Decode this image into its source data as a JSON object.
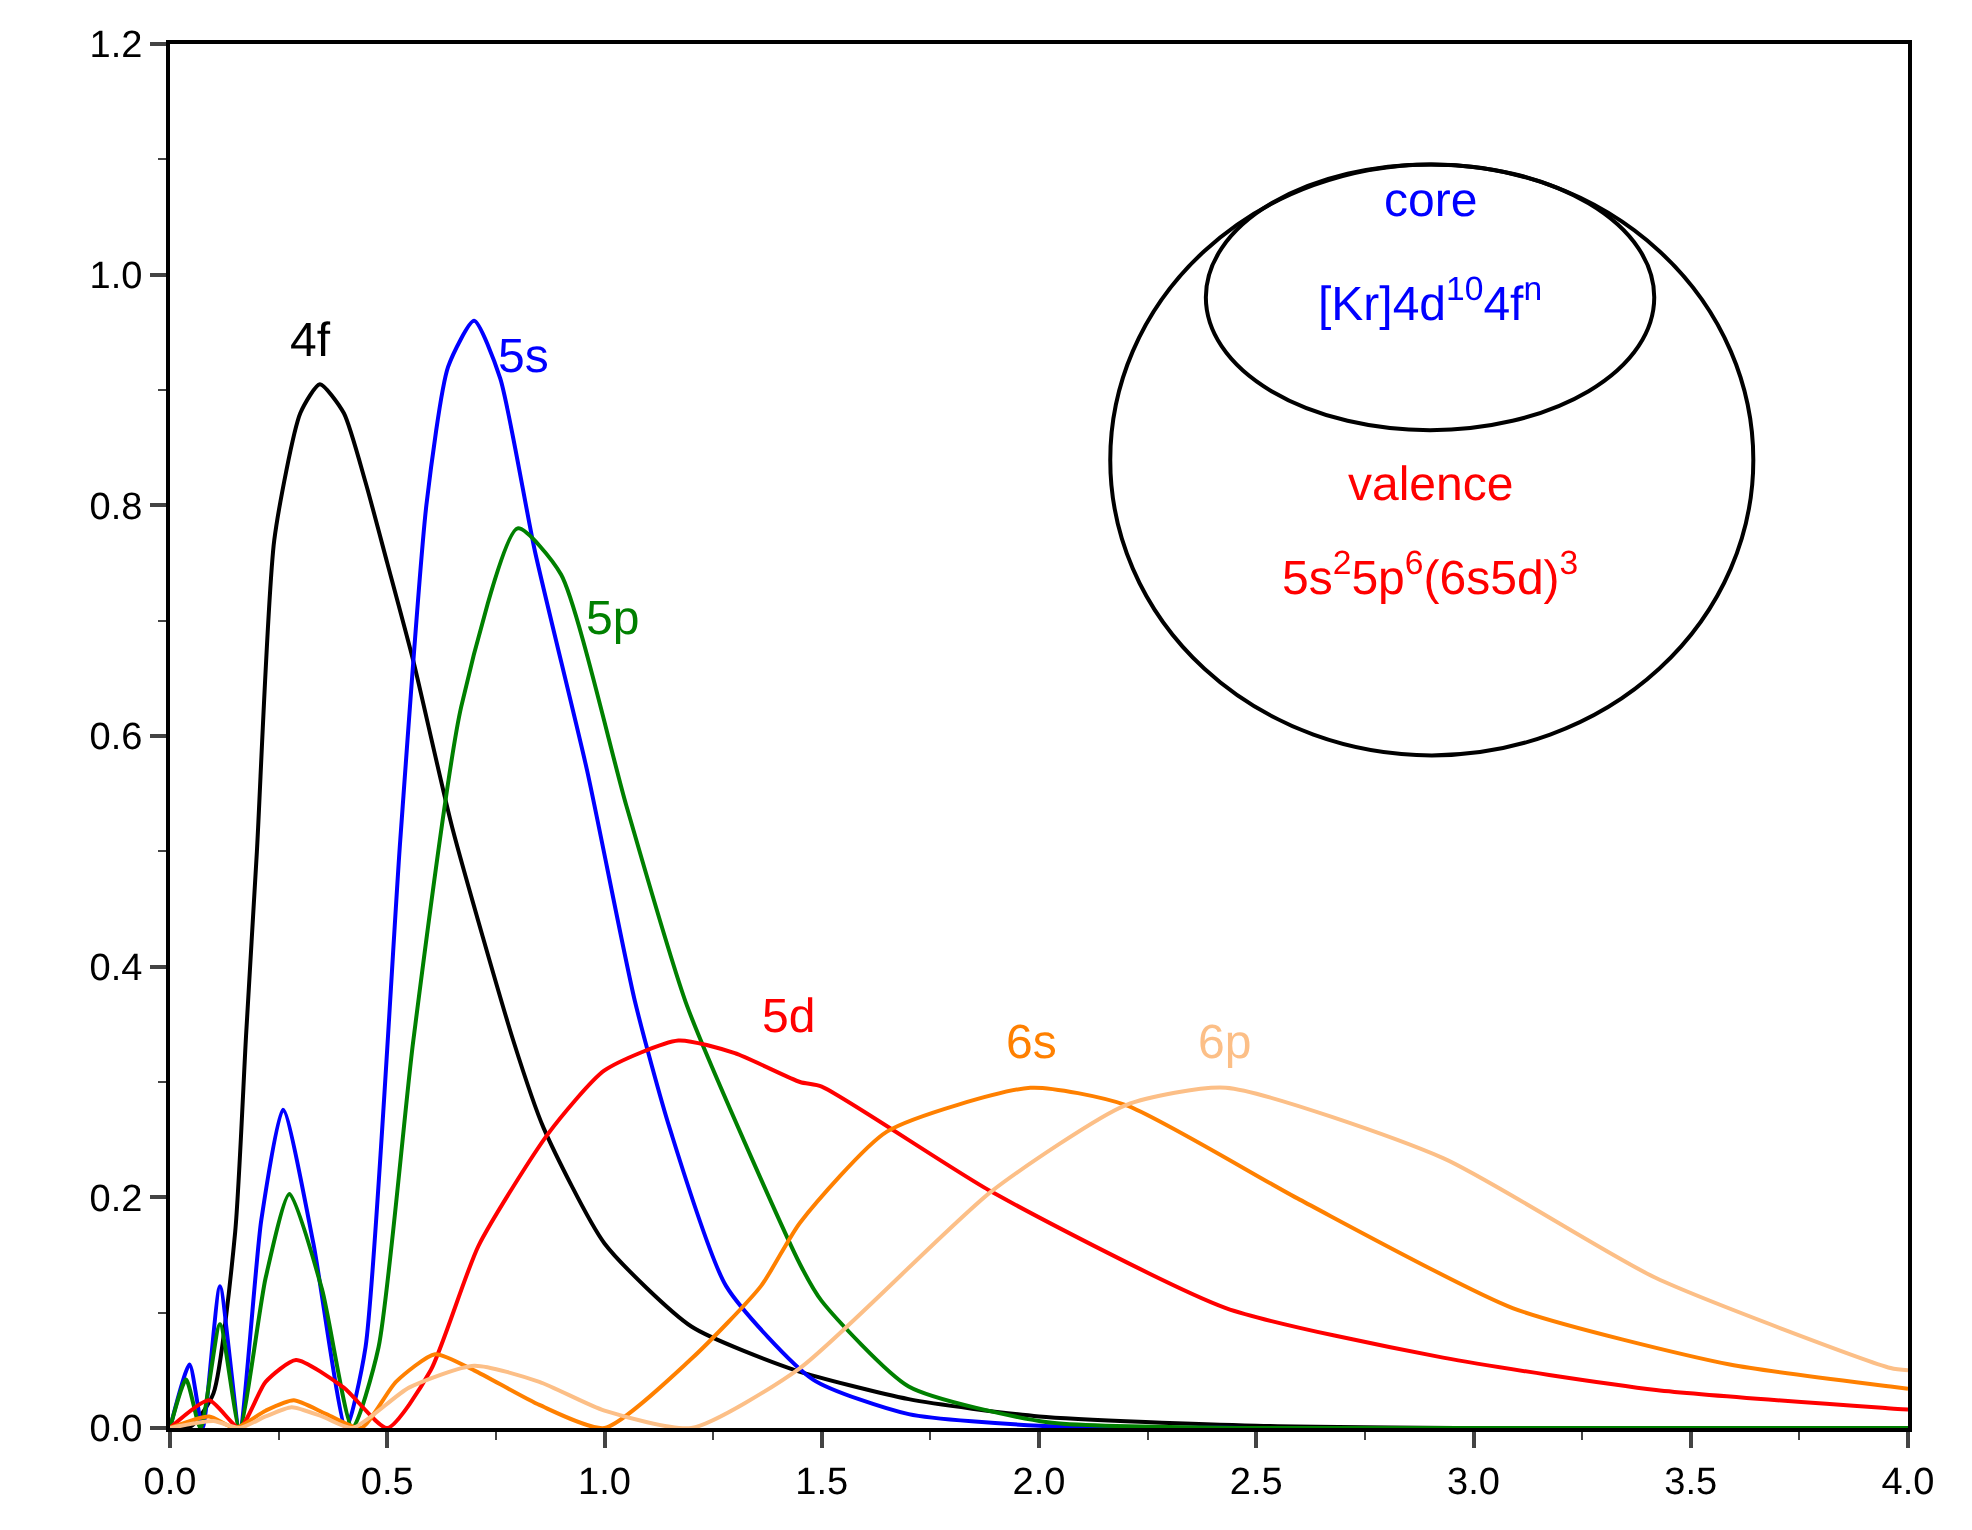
{
  "chart_data": {
    "type": "line",
    "xlim": [
      0,
      4
    ],
    "ylim": [
      0,
      1.2
    ],
    "xticks": [
      {
        "value": 0,
        "label": "0.0"
      },
      0.5,
      {
        "value": 1,
        "label": "1.0"
      },
      1.5,
      {
        "value": 2,
        "label": "2.0"
      },
      2.5,
      {
        "value": 3,
        "label": "3.0"
      },
      3.5,
      {
        "value": 4,
        "label": "4.0"
      }
    ],
    "yticks": [
      {
        "value": 0,
        "label": "0.0"
      },
      0.2,
      0.4,
      0.6,
      0.8,
      {
        "value": 1,
        "label": "1.0"
      },
      1.2
    ],
    "grid": false,
    "legend": false,
    "line_style": "solid",
    "marker": "none",
    "annotations": [
      "core",
      "[Kr]4d$^{10}$4f$^{n}$",
      "valence",
      "5s$^{2}$5p$^{6}$(6s5d)$^{3}$"
    ],
    "series": [
      {
        "name": "4f",
        "color": "#000000",
        "x": [
          0,
          0.05,
          0.1,
          0.15,
          0.175,
          0.2,
          0.24,
          0.3,
          0.345,
          0.4,
          0.45,
          0.5,
          0.56,
          0.65,
          0.79,
          0.86,
          1.0,
          1.2,
          1.44,
          1.7,
          2.0,
          2.5,
          3,
          4
        ],
        "values": [
          0,
          0.002,
          0.03,
          0.17,
          0.34,
          0.5,
          0.77,
          0.88,
          0.905,
          0.88,
          0.82,
          0.75,
          0.665,
          0.52,
          0.336,
          0.26,
          0.16,
          0.088,
          0.05,
          0.025,
          0.01,
          0.002,
          0,
          0
        ]
      },
      {
        "name": "5s",
        "color": "#0000ff",
        "x": [
          0,
          0.045,
          0.075,
          0.115,
          0.16,
          0.21,
          0.26,
          0.33,
          0.405,
          0.45,
          0.53,
          0.59,
          0.64,
          0.7,
          0.76,
          0.84,
          0.96,
          1.07,
          1.15,
          1.28,
          1.48,
          1.7,
          2.0,
          2.5,
          4
        ],
        "values": [
          0,
          0.055,
          0,
          0.123,
          0,
          0.18,
          0.276,
          0.16,
          0,
          0.07,
          0.51,
          0.8,
          0.92,
          0.96,
          0.91,
          0.76,
          0.57,
          0.37,
          0.26,
          0.123,
          0.042,
          0.012,
          0.002,
          0,
          0
        ]
      },
      {
        "name": "5p",
        "color": "#008000",
        "x": [
          0,
          0.037,
          0.07,
          0.115,
          0.16,
          0.22,
          0.275,
          0.35,
          0.42,
          0.48,
          0.56,
          0.67,
          0.8,
          0.9,
          1.05,
          1.19,
          1.45,
          1.5,
          1.7,
          2.02,
          2.5,
          4
        ],
        "values": [
          0,
          0.042,
          0,
          0.09,
          0,
          0.13,
          0.203,
          0.12,
          0,
          0.07,
          0.336,
          0.625,
          0.78,
          0.74,
          0.54,
          0.366,
          0.142,
          0.11,
          0.036,
          0.005,
          0,
          0
        ]
      },
      {
        "name": "5d",
        "color": "#ff0000",
        "x": [
          0,
          0.09,
          0.16,
          0.22,
          0.29,
          0.4,
          0.5,
          0.6,
          0.71,
          0.87,
          1.0,
          1.17,
          1.3,
          1.45,
          1.5,
          1.89,
          2.43,
          2.93,
          3.42,
          3.96,
          4
        ],
        "values": [
          0,
          0.024,
          0,
          0.04,
          0.059,
          0.035,
          0,
          0.05,
          0.158,
          0.255,
          0.31,
          0.336,
          0.325,
          0.3,
          0.296,
          0.205,
          0.104,
          0.061,
          0.033,
          0.017,
          0.016
        ]
      },
      {
        "name": "6s",
        "color": "#ff8000",
        "x": [
          0,
          0.09,
          0.15,
          0.22,
          0.285,
          0.36,
          0.44,
          0.52,
          0.61,
          0.7,
          0.85,
          1.0,
          1.2,
          1.36,
          1.45,
          1.65,
          1.98,
          2.2,
          2.6,
          3.09,
          3.59,
          3.96,
          4
        ],
        "values": [
          0,
          0.01,
          0,
          0.015,
          0.024,
          0.012,
          0,
          0.04,
          0.064,
          0.05,
          0.02,
          0,
          0.06,
          0.123,
          0.178,
          0.257,
          0.295,
          0.28,
          0.198,
          0.104,
          0.055,
          0.036,
          0.034
        ]
      },
      {
        "name": "6p",
        "color": "#fcbf87",
        "x": [
          0,
          0.1,
          0.16,
          0.22,
          0.28,
          0.35,
          0.42,
          0.55,
          0.7,
          0.85,
          1.0,
          1.2,
          1.45,
          1.89,
          2.2,
          2.43,
          2.93,
          3.42,
          3.96,
          4
        ],
        "values": [
          0,
          0.006,
          0,
          0.01,
          0.018,
          0.01,
          0,
          0.035,
          0.054,
          0.04,
          0.015,
          0,
          0.052,
          0.205,
          0.28,
          0.295,
          0.234,
          0.13,
          0.052,
          0.05
        ]
      }
    ]
  }
}
